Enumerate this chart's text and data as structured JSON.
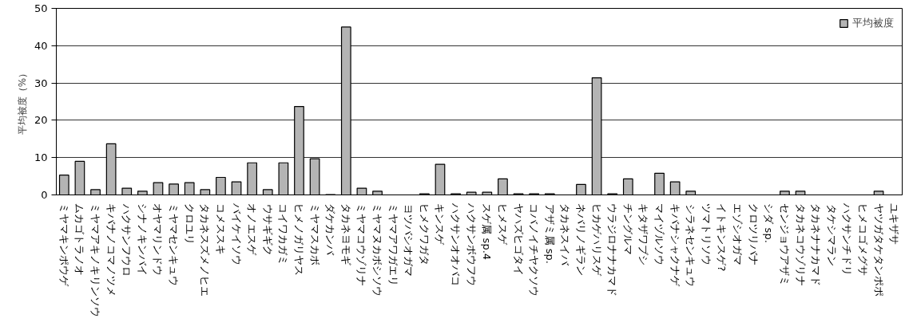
{
  "chart_data": {
    "type": "bar",
    "ylabel": "平均被度（%）",
    "categories": [
      "ミヤマキンポウゲ",
      "ムカゴトラノオ",
      "ミヤマアキノキリンソウ",
      "キバナノコマノツメ",
      "ハクサンフウロ",
      "シナノキンバイ",
      "オヤマリンドウ",
      "ミヤマセンキュウ",
      "クロユリ",
      "タカネスズメノヒエ",
      "コメススキ",
      "バイケイソウ",
      "オノエスゲ",
      "ウサギギク",
      "コイワカガミ",
      "ヒメノガリヤス",
      "ミヤマスカボ",
      "ダケカンバ",
      "タカネヨモギ",
      "ミヤマコウゾリナ",
      "ミヤマヌカボシソウ",
      "ミヤマアワガエリ",
      "ヨツバシオガマ",
      "ヒメクワガタ",
      "キンスゲ",
      "ハクサンオオバコ",
      "ハクサンボウフウ",
      "スゲ属 sp.4",
      "ヒメスゲ",
      "ヤハズヒゴタイ",
      "コバノイチヤクソウ",
      "アザミ属 sp.",
      "タカネスイバ",
      "ネバリノギラン",
      "ヒカゲハリスゲ",
      "ウラジロナナカマド",
      "チングルマ",
      "キタザワブシ",
      "マイヅルソウ",
      "キバナシャクナゲ",
      "シラネセンキュウ",
      "ツマトリソウ",
      "イトキンスゲ?",
      "エゾシオガマ",
      "クロツリバナ",
      "シダ sp.",
      "センジョウアザミ",
      "タカネコウゾリナ",
      "タカネナナカマド",
      "タケシマラン",
      "ハクサンチドリ",
      "ヒメコゴメグサ",
      "ヤツガタケタンポポ",
      "ユキザサ"
    ],
    "series": [
      {
        "name": "平均被度",
        "color": "#b4b4b4",
        "values": [
          5.3,
          9.0,
          1.4,
          13.7,
          1.8,
          1.0,
          3.3,
          2.9,
          3.3,
          1.4,
          4.7,
          3.5,
          8.6,
          1.4,
          8.6,
          23.7,
          9.7,
          0.1,
          45,
          1.8,
          1.0,
          0,
          0,
          0.3,
          8.2,
          0.3,
          0.7,
          0.7,
          4.3,
          0.3,
          0.3,
          0.3,
          0,
          2.8,
          31.4,
          0.3,
          4.3,
          0,
          5.8,
          3.5,
          1.0,
          0,
          0,
          0,
          0,
          0,
          1.0,
          1.0,
          0,
          0,
          0,
          0,
          1.0,
          0
        ]
      }
    ],
    "ylim": [
      0,
      50
    ],
    "yticks": [
      0,
      10,
      20,
      30,
      40,
      50
    ],
    "grid": "y",
    "legend": "top right"
  }
}
